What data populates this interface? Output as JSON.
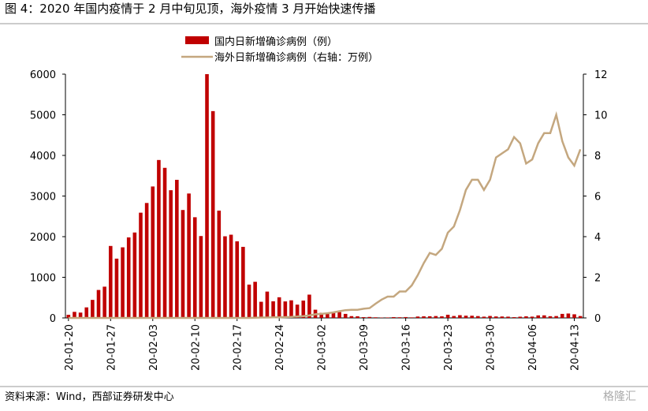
{
  "chart_data": {
    "type": "bar-line",
    "title": "图 4：2020 年国内疫情于 2 月中旬见顶，海外疫情 3 月开始快速传播",
    "source": "资料来源：Wind，西部证券研发中心",
    "watermark": "格隆汇",
    "categories": [
      "20-01-20",
      null,
      null,
      null,
      null,
      null,
      null,
      "20-01-27",
      null,
      null,
      null,
      null,
      null,
      null,
      "20-02-03",
      null,
      null,
      null,
      null,
      null,
      null,
      "20-02-10",
      null,
      null,
      null,
      null,
      null,
      null,
      "20-02-17",
      null,
      null,
      null,
      null,
      null,
      null,
      "20-02-24",
      null,
      null,
      null,
      null,
      null,
      null,
      "20-03-02",
      null,
      null,
      null,
      null,
      null,
      null,
      "20-03-09",
      null,
      null,
      null,
      null,
      null,
      null,
      "20-03-16",
      null,
      null,
      null,
      null,
      null,
      null,
      "20-03-23",
      null,
      null,
      null,
      null,
      null,
      null,
      "20-03-30",
      null,
      null,
      null,
      null,
      null,
      null,
      "20-04-06",
      null,
      null,
      null,
      null,
      null,
      null,
      "20-04-13",
      null
    ],
    "series": [
      {
        "name": "国内日新增确诊病例（例）",
        "color": "#c00000",
        "kind": "bar",
        "values": [
          77,
          149,
          131,
          259,
          444,
          688,
          769,
          1771,
          1459,
          1737,
          1982,
          2102,
          2590,
          2829,
          3235,
          3887,
          3694,
          3143,
          3399,
          2656,
          3062,
          2478,
          2015,
          6000,
          5090,
          2641,
          2009,
          2048,
          1886,
          1749,
          820,
          889,
          397,
          648,
          409,
          508,
          406,
          433,
          327,
          427,
          573,
          202,
          125,
          119,
          139,
          143,
          99,
          44,
          40,
          19,
          24,
          15,
          8,
          11,
          20,
          16,
          21,
          13,
          34,
          39,
          41,
          46,
          39,
          78,
          47,
          67,
          55,
          54,
          45,
          31,
          48,
          36,
          35,
          31,
          19,
          30,
          39,
          32,
          62,
          63,
          42,
          46,
          99,
          108,
          89,
          46
        ]
      },
      {
        "name": "海外日新增确诊病例（右轴：万例）",
        "color": "#c4a77f",
        "kind": "line",
        "axis": "y2",
        "values": [
          0,
          0,
          0,
          0,
          0,
          0,
          0,
          0,
          0,
          0,
          0,
          0,
          0,
          0,
          0,
          0,
          0,
          0,
          0,
          0,
          0,
          0,
          0,
          0,
          0,
          0,
          0,
          0,
          0,
          0,
          0,
          0.01,
          0.02,
          0.02,
          0.03,
          0.03,
          0.04,
          0.05,
          0.07,
          0.09,
          0.12,
          0.18,
          0.2,
          0.23,
          0.27,
          0.33,
          0.38,
          0.4,
          0.4,
          0.45,
          0.48,
          0.7,
          0.9,
          1.05,
          1.05,
          1.3,
          1.3,
          1.6,
          2.1,
          2.7,
          3.2,
          3.1,
          3.4,
          4.2,
          4.5,
          5.3,
          6.3,
          6.8,
          6.8,
          6.3,
          6.8,
          7.9,
          8.1,
          8.3,
          8.9,
          8.6,
          7.6,
          7.8,
          8.6,
          9.1,
          9.1,
          10.0,
          8.7,
          7.9,
          7.5,
          8.3
        ]
      }
    ],
    "ylim": [
      0,
      6000
    ],
    "yticks": [
      0,
      1000,
      2000,
      3000,
      4000,
      5000,
      6000
    ],
    "y2lim": [
      0,
      12
    ],
    "y2ticks": [
      0,
      2,
      4,
      6,
      8,
      10,
      12
    ]
  }
}
